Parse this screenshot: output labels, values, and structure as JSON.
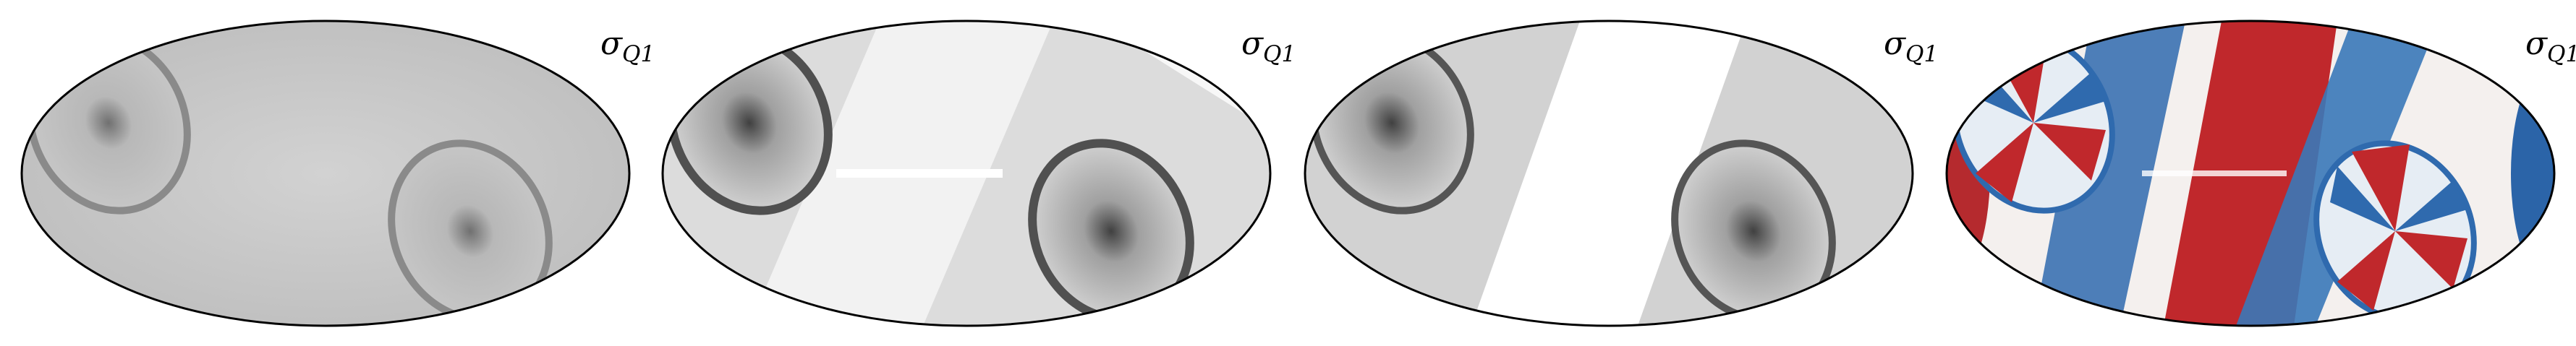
{
  "panels": [
    {
      "label": {
        "symbol": "σ",
        "subscript": "Q1"
      }
    },
    {
      "label": {
        "symbol": "σ",
        "subscript": "Q1"
      }
    },
    {
      "label": {
        "symbol": "σ",
        "subscript": "Q1"
      }
    },
    {
      "label": {
        "symbol": "σ",
        "subscript": "Q1"
      }
    }
  ]
}
